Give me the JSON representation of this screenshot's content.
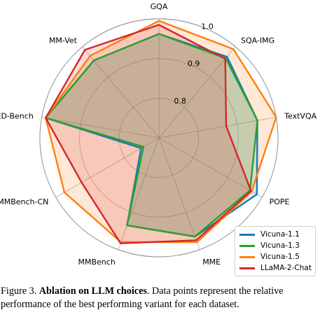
{
  "chart_data": {
    "type": "radar",
    "axes": [
      "GQA",
      "SQA-IMG",
      "TextVQA",
      "POPE",
      "MME",
      "MMBench",
      "MMBench-CN",
      "SEED-Bench",
      "MM-Vet"
    ],
    "rticks": [
      {
        "value": 0.8,
        "label": "0.8"
      },
      {
        "value": 0.9,
        "label": "0.9"
      },
      {
        "value": 1.0,
        "label": "1.0"
      }
    ],
    "rlim": [
      0.7,
      1.0
    ],
    "grid": true,
    "legend_position": "bottom-right",
    "series": [
      {
        "name": "Vicuna-1.1",
        "color": "#1f77b4",
        "values": [
          0.962,
          0.967,
          0.952,
          0.985,
          0.965,
          0.935,
          0.752,
          0.99,
          0.955
        ]
      },
      {
        "name": "Vicuna-1.3",
        "color": "#2ca02c",
        "values": [
          0.962,
          0.962,
          0.952,
          0.965,
          0.965,
          0.935,
          0.745,
          0.99,
          0.955
        ]
      },
      {
        "name": "Vicuna-1.5",
        "color": "#ff7f0e",
        "values": [
          0.995,
          0.992,
          1.0,
          0.97,
          0.98,
          0.98,
          0.975,
          0.99,
          0.97
        ]
      },
      {
        "name": "LLaMA-2-Chat",
        "color": "#d62728",
        "values": [
          0.985,
          0.96,
          0.872,
          0.968,
          0.975,
          0.983,
          0.925,
          0.99,
          0.99
        ]
      }
    ]
  },
  "caption": {
    "label": "Figure 3.",
    "title": "Ablation on LLM choices",
    "after_title": ".",
    "text": " Data points represent the relative performance of the best performing variant for each dataset."
  }
}
